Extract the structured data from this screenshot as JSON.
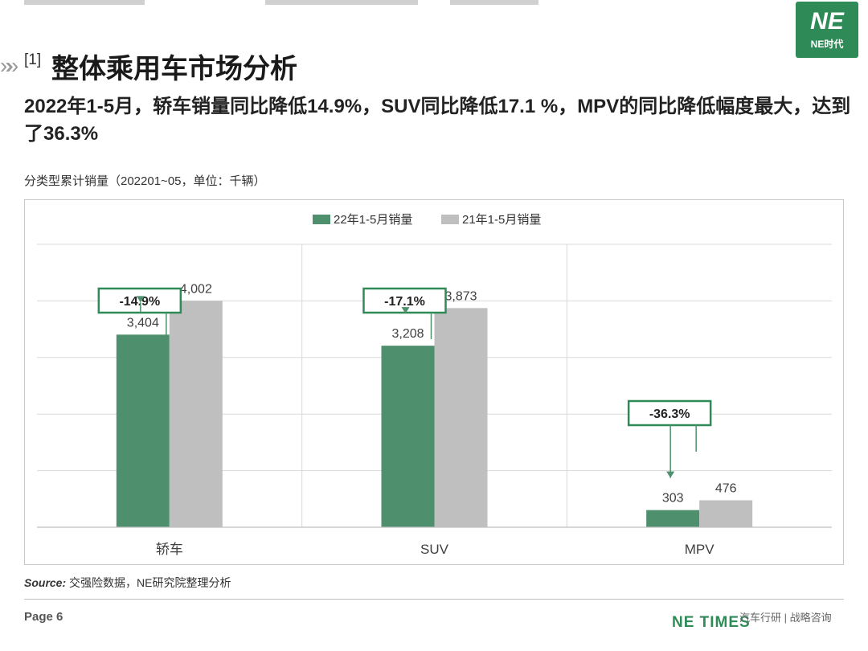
{
  "header": {
    "section_number": "[1]",
    "title": "整体乘用车市场分析",
    "subtitle": "2022年1-5月，轿车销量同比降低14.9%，SUV同比降低17.1 %，MPV的同比降低幅度最大，达到了36.3%"
  },
  "logo": {
    "mark": "NE",
    "text": "NE时代",
    "color": "#2e8b57"
  },
  "chart_caption": "分类型累计销量（202201~05，单位：千辆）",
  "chart_data": {
    "type": "bar",
    "categories": [
      "轿车",
      "SUV",
      "MPV"
    ],
    "series": [
      {
        "name": "22年1-5月销量",
        "values": [
          3404,
          3208,
          303
        ],
        "labels": [
          "3,404",
          "3,208",
          "303"
        ],
        "color": "#4e8f6e"
      },
      {
        "name": "21年1-5月销量",
        "values": [
          4002,
          3873,
          476
        ],
        "labels": [
          "4,002",
          "3,873",
          "476"
        ],
        "color": "#bfbfbf"
      }
    ],
    "annotations": [
      "-14.9%",
      "-17.1%",
      "-36.3%"
    ],
    "ylim": [
      0,
      5000
    ],
    "grid": true,
    "legend": "top-center",
    "title": "",
    "xlabel": "",
    "ylabel": ""
  },
  "source": {
    "label": "Source:",
    "text": "交强险数据，NE研究院整理分析"
  },
  "footer": {
    "page": "Page 6",
    "brand": "NE TIMES",
    "tagline": "汽车行研 | 战略咨询"
  }
}
